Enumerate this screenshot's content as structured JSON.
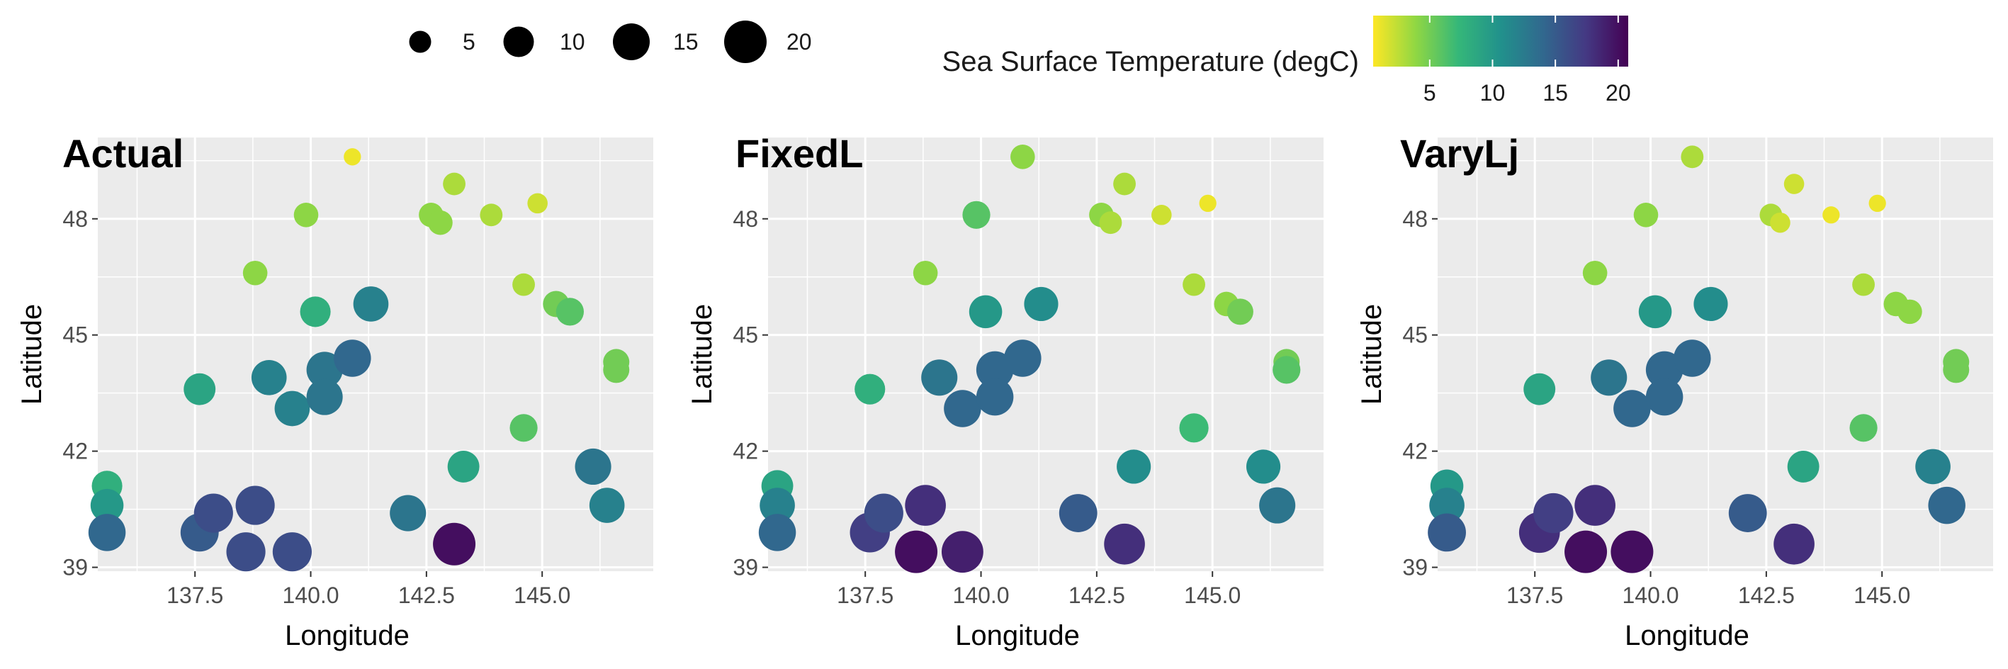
{
  "legend": {
    "size": {
      "title": "",
      "breaks": [
        {
          "value": 5,
          "label": "5"
        },
        {
          "value": 10,
          "label": "10"
        },
        {
          "value": 15,
          "label": "15"
        },
        {
          "value": 20,
          "label": "20"
        }
      ]
    },
    "color": {
      "title": "Sea Surface Temperature (degC)",
      "ticks": [
        {
          "value": 5,
          "label": "5"
        },
        {
          "value": 10,
          "label": "10"
        },
        {
          "value": 15,
          "label": "15"
        },
        {
          "value": 20,
          "label": "20"
        }
      ],
      "min": 0.5,
      "max": 20.8,
      "palette": [
        "#fde725",
        "#90d743",
        "#35b779",
        "#21918c",
        "#31688e",
        "#443983",
        "#440154"
      ]
    },
    "position": "top"
  },
  "chart_data": [
    {
      "type": "scatter",
      "title": "Actual",
      "xlabel": "Longitude",
      "ylabel": "Latitude",
      "xlim": [
        135.4,
        147.4
      ],
      "ylim": [
        38.9,
        50.1
      ],
      "xticks": [
        {
          "value": 137.5,
          "label": "137.5"
        },
        {
          "value": 140.0,
          "label": "140.0"
        },
        {
          "value": 142.5,
          "label": "142.5"
        },
        {
          "value": 145.0,
          "label": "145.0"
        }
      ],
      "yticks": [
        {
          "value": 39,
          "label": "39"
        },
        {
          "value": 42,
          "label": "42"
        },
        {
          "value": 45,
          "label": "45"
        },
        {
          "value": 48,
          "label": "48"
        }
      ],
      "grid": true,
      "points": [
        {
          "x": 140.9,
          "y": 49.6,
          "value": 1
        },
        {
          "x": 139.9,
          "y": 48.1,
          "value": 4
        },
        {
          "x": 142.6,
          "y": 48.1,
          "value": 4
        },
        {
          "x": 142.8,
          "y": 47.9,
          "value": 4
        },
        {
          "x": 143.1,
          "y": 48.9,
          "value": 3
        },
        {
          "x": 143.9,
          "y": 48.1,
          "value": 3
        },
        {
          "x": 144.9,
          "y": 48.4,
          "value": 2
        },
        {
          "x": 138.8,
          "y": 46.6,
          "value": 4
        },
        {
          "x": 144.6,
          "y": 46.3,
          "value": 3
        },
        {
          "x": 145.3,
          "y": 45.8,
          "value": 5
        },
        {
          "x": 145.6,
          "y": 45.6,
          "value": 6
        },
        {
          "x": 140.1,
          "y": 45.6,
          "value": 8
        },
        {
          "x": 141.3,
          "y": 45.8,
          "value": 12
        },
        {
          "x": 137.6,
          "y": 43.6,
          "value": 9
        },
        {
          "x": 139.1,
          "y": 43.9,
          "value": 12
        },
        {
          "x": 139.6,
          "y": 43.1,
          "value": 12
        },
        {
          "x": 140.3,
          "y": 44.1,
          "value": 13
        },
        {
          "x": 140.9,
          "y": 44.4,
          "value": 14
        },
        {
          "x": 140.3,
          "y": 43.4,
          "value": 13
        },
        {
          "x": 146.6,
          "y": 44.3,
          "value": 5
        },
        {
          "x": 146.6,
          "y": 44.1,
          "value": 5
        },
        {
          "x": 144.6,
          "y": 42.6,
          "value": 6
        },
        {
          "x": 143.3,
          "y": 41.6,
          "value": 9
        },
        {
          "x": 146.1,
          "y": 41.6,
          "value": 13
        },
        {
          "x": 146.4,
          "y": 40.6,
          "value": 12
        },
        {
          "x": 142.1,
          "y": 40.4,
          "value": 13
        },
        {
          "x": 143.1,
          "y": 39.6,
          "value": 20
        },
        {
          "x": 135.6,
          "y": 41.1,
          "value": 8
        },
        {
          "x": 135.6,
          "y": 40.6,
          "value": 10
        },
        {
          "x": 135.6,
          "y": 39.9,
          "value": 14
        },
        {
          "x": 137.6,
          "y": 39.9,
          "value": 15
        },
        {
          "x": 137.9,
          "y": 40.4,
          "value": 16
        },
        {
          "x": 138.8,
          "y": 40.6,
          "value": 16
        },
        {
          "x": 138.6,
          "y": 39.4,
          "value": 16
        },
        {
          "x": 139.6,
          "y": 39.4,
          "value": 16
        }
      ]
    },
    {
      "type": "scatter",
      "title": "FixedL",
      "xlabel": "Longitude",
      "ylabel": "Latitude",
      "xlim": [
        135.4,
        147.4
      ],
      "ylim": [
        38.9,
        50.1
      ],
      "xticks": [
        {
          "value": 137.5,
          "label": "137.5"
        },
        {
          "value": 140.0,
          "label": "140.0"
        },
        {
          "value": 142.5,
          "label": "142.5"
        },
        {
          "value": 145.0,
          "label": "145.0"
        }
      ],
      "yticks": [
        {
          "value": 39,
          "label": "39"
        },
        {
          "value": 42,
          "label": "42"
        },
        {
          "value": 45,
          "label": "45"
        },
        {
          "value": 48,
          "label": "48"
        }
      ],
      "grid": true,
      "points": [
        {
          "x": 140.9,
          "y": 49.6,
          "value": 4
        },
        {
          "x": 139.9,
          "y": 48.1,
          "value": 6
        },
        {
          "x": 142.6,
          "y": 48.1,
          "value": 4
        },
        {
          "x": 142.8,
          "y": 47.9,
          "value": 3
        },
        {
          "x": 143.1,
          "y": 48.9,
          "value": 3
        },
        {
          "x": 143.9,
          "y": 48.1,
          "value": 2
        },
        {
          "x": 144.9,
          "y": 48.4,
          "value": 1
        },
        {
          "x": 138.8,
          "y": 46.6,
          "value": 4
        },
        {
          "x": 144.6,
          "y": 46.3,
          "value": 3
        },
        {
          "x": 145.3,
          "y": 45.8,
          "value": 4
        },
        {
          "x": 145.6,
          "y": 45.6,
          "value": 5
        },
        {
          "x": 140.1,
          "y": 45.6,
          "value": 10
        },
        {
          "x": 141.3,
          "y": 45.8,
          "value": 11
        },
        {
          "x": 137.6,
          "y": 43.6,
          "value": 8
        },
        {
          "x": 139.1,
          "y": 43.9,
          "value": 13
        },
        {
          "x": 139.6,
          "y": 43.1,
          "value": 14
        },
        {
          "x": 140.3,
          "y": 44.1,
          "value": 14
        },
        {
          "x": 140.9,
          "y": 44.4,
          "value": 14
        },
        {
          "x": 140.3,
          "y": 43.4,
          "value": 14
        },
        {
          "x": 146.6,
          "y": 44.3,
          "value": 5
        },
        {
          "x": 146.6,
          "y": 44.1,
          "value": 6
        },
        {
          "x": 144.6,
          "y": 42.6,
          "value": 7
        },
        {
          "x": 143.3,
          "y": 41.6,
          "value": 11
        },
        {
          "x": 146.1,
          "y": 41.6,
          "value": 11
        },
        {
          "x": 146.4,
          "y": 40.6,
          "value": 13
        },
        {
          "x": 142.1,
          "y": 40.4,
          "value": 15
        },
        {
          "x": 143.1,
          "y": 39.6,
          "value": 18
        },
        {
          "x": 135.6,
          "y": 41.1,
          "value": 9
        },
        {
          "x": 135.6,
          "y": 40.6,
          "value": 12
        },
        {
          "x": 135.6,
          "y": 39.9,
          "value": 14
        },
        {
          "x": 137.6,
          "y": 39.9,
          "value": 17
        },
        {
          "x": 137.9,
          "y": 40.4,
          "value": 16
        },
        {
          "x": 138.8,
          "y": 40.6,
          "value": 18
        },
        {
          "x": 138.6,
          "y": 39.4,
          "value": 20
        },
        {
          "x": 139.6,
          "y": 39.4,
          "value": 19
        }
      ]
    },
    {
      "type": "scatter",
      "title": "VaryLj",
      "xlabel": "Longitude",
      "ylabel": "Latitude",
      "xlim": [
        135.4,
        147.4
      ],
      "ylim": [
        38.9,
        50.1
      ],
      "xticks": [
        {
          "value": 137.5,
          "label": "137.5"
        },
        {
          "value": 140.0,
          "label": "140.0"
        },
        {
          "value": 142.5,
          "label": "142.5"
        },
        {
          "value": 145.0,
          "label": "145.0"
        }
      ],
      "yticks": [
        {
          "value": 39,
          "label": "39"
        },
        {
          "value": 42,
          "label": "42"
        },
        {
          "value": 45,
          "label": "45"
        },
        {
          "value": 48,
          "label": "48"
        }
      ],
      "grid": true,
      "points": [
        {
          "x": 140.9,
          "y": 49.6,
          "value": 3
        },
        {
          "x": 139.9,
          "y": 48.1,
          "value": 4
        },
        {
          "x": 142.6,
          "y": 48.1,
          "value": 3
        },
        {
          "x": 142.8,
          "y": 47.9,
          "value": 2
        },
        {
          "x": 143.1,
          "y": 48.9,
          "value": 2
        },
        {
          "x": 143.9,
          "y": 48.1,
          "value": 1
        },
        {
          "x": 144.9,
          "y": 48.4,
          "value": 1
        },
        {
          "x": 138.8,
          "y": 46.6,
          "value": 4
        },
        {
          "x": 144.6,
          "y": 46.3,
          "value": 3
        },
        {
          "x": 145.3,
          "y": 45.8,
          "value": 4
        },
        {
          "x": 145.6,
          "y": 45.6,
          "value": 4
        },
        {
          "x": 140.1,
          "y": 45.6,
          "value": 10
        },
        {
          "x": 141.3,
          "y": 45.8,
          "value": 11
        },
        {
          "x": 137.6,
          "y": 43.6,
          "value": 9
        },
        {
          "x": 139.1,
          "y": 43.9,
          "value": 13
        },
        {
          "x": 139.6,
          "y": 43.1,
          "value": 14
        },
        {
          "x": 140.3,
          "y": 44.1,
          "value": 14
        },
        {
          "x": 140.9,
          "y": 44.4,
          "value": 14
        },
        {
          "x": 140.3,
          "y": 43.4,
          "value": 14
        },
        {
          "x": 146.6,
          "y": 44.3,
          "value": 5
        },
        {
          "x": 146.6,
          "y": 44.1,
          "value": 5
        },
        {
          "x": 144.6,
          "y": 42.6,
          "value": 6
        },
        {
          "x": 143.3,
          "y": 41.6,
          "value": 9
        },
        {
          "x": 146.1,
          "y": 41.6,
          "value": 12
        },
        {
          "x": 146.4,
          "y": 40.6,
          "value": 14
        },
        {
          "x": 142.1,
          "y": 40.4,
          "value": 15
        },
        {
          "x": 143.1,
          "y": 39.6,
          "value": 18
        },
        {
          "x": 135.6,
          "y": 41.1,
          "value": 10
        },
        {
          "x": 135.6,
          "y": 40.6,
          "value": 12
        },
        {
          "x": 135.6,
          "y": 39.9,
          "value": 15
        },
        {
          "x": 137.6,
          "y": 39.9,
          "value": 18
        },
        {
          "x": 137.9,
          "y": 40.4,
          "value": 17
        },
        {
          "x": 138.8,
          "y": 40.6,
          "value": 18
        },
        {
          "x": 138.6,
          "y": 39.4,
          "value": 20
        },
        {
          "x": 139.6,
          "y": 39.4,
          "value": 20
        }
      ]
    }
  ]
}
